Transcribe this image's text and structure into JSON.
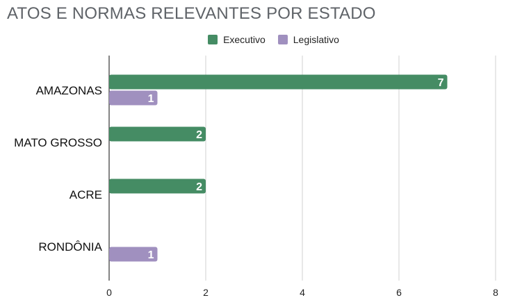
{
  "chart_data": {
    "type": "bar",
    "orientation": "horizontal",
    "title": "ATOS E NORMAS RELEVANTES POR ESTADO",
    "categories": [
      "AMAZONAS",
      "MATO GROSSO",
      "ACRE",
      "RONDÔNIA"
    ],
    "series": [
      {
        "name": "Executivo",
        "color": "#458c64",
        "values": [
          7,
          2,
          2,
          null
        ]
      },
      {
        "name": "Legislativo",
        "color": "#a090bf",
        "values": [
          1,
          null,
          null,
          1
        ]
      }
    ],
    "xlim": [
      0,
      8
    ],
    "xticks": [
      "0",
      "2",
      "4",
      "6",
      "8"
    ],
    "xlabel": "",
    "ylabel": "",
    "grid": true,
    "legend_position": "top",
    "data_labels": true
  }
}
